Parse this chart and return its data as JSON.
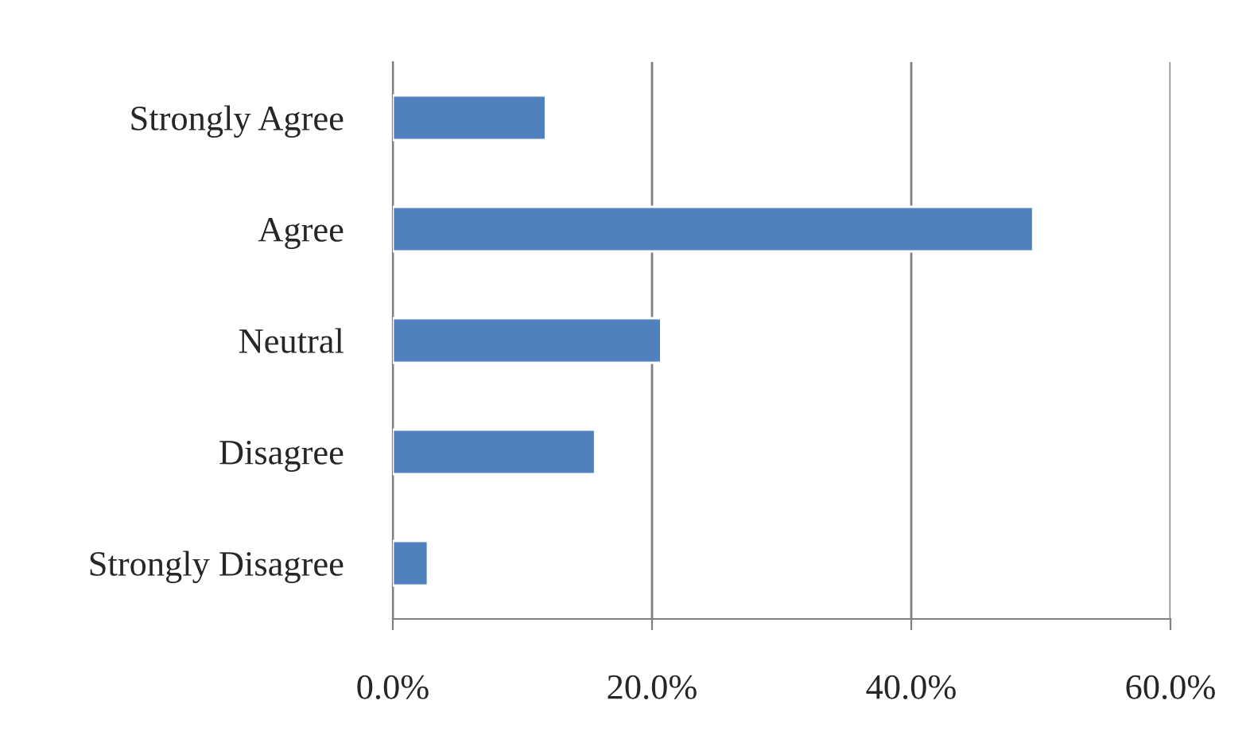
{
  "chart_data": {
    "type": "bar",
    "orientation": "horizontal",
    "categories": [
      "Strongly Agree",
      "Agree",
      "Neutral",
      "Disagree",
      "Strongly Disagree"
    ],
    "values": [
      11.8,
      49.4,
      20.7,
      15.6,
      2.7
    ],
    "color": "#4f81bd",
    "xlim": [
      0,
      60
    ],
    "xticks": [
      {
        "value": 0,
        "label": "0.0%"
      },
      {
        "value": 20,
        "label": "20.0%"
      },
      {
        "value": 40,
        "label": "40.0%"
      },
      {
        "value": 60,
        "label": "60.0%"
      }
    ],
    "grid": "x"
  }
}
